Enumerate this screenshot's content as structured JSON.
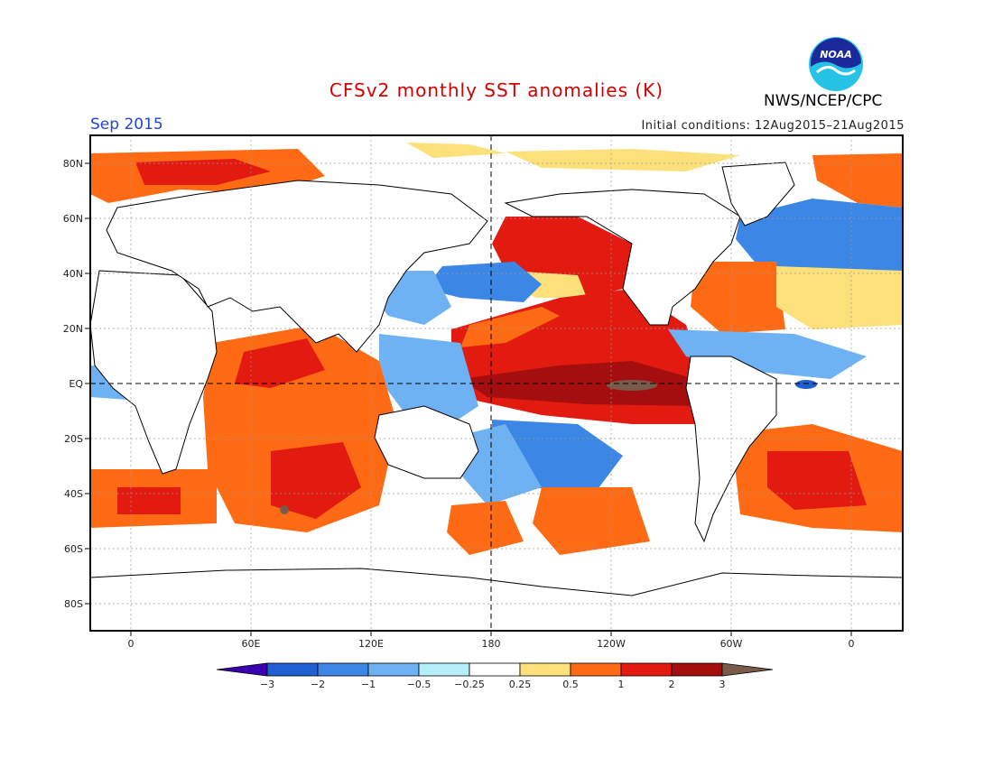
{
  "header": {
    "title": "CFSv2 monthly SST anomalies (K)",
    "month": "Sep 2015",
    "initial_conditions": "Initial conditions: 12Aug2015–21Aug2015",
    "org": "NWS/NCEP/CPC",
    "logo_text": "NOAA"
  },
  "map": {
    "projection": "cylindrical-equidistant",
    "lon_ticks": [
      "0",
      "60E",
      "120E",
      "180",
      "120W",
      "60W",
      "0"
    ],
    "lat_ticks": [
      "80N",
      "60N",
      "40N",
      "20N",
      "EQ",
      "20S",
      "40S",
      "60S",
      "80S"
    ],
    "land_color": "#ffffff",
    "reference_lines": [
      "EQ",
      "180"
    ]
  },
  "legend": {
    "type": "colorbar",
    "labels": [
      "−3",
      "−2",
      "−1",
      "−0.5",
      "−0.25",
      "0.25",
      "0.5",
      "1",
      "2",
      "3"
    ],
    "colors": [
      "#3a00b0",
      "#1f5fcf",
      "#3c87e6",
      "#6eb2f4",
      "#b4eef8",
      "#ffffff",
      "#fce07a",
      "#ff6a14",
      "#e21a10",
      "#a50e0e",
      "#7a5a4a"
    ]
  }
}
